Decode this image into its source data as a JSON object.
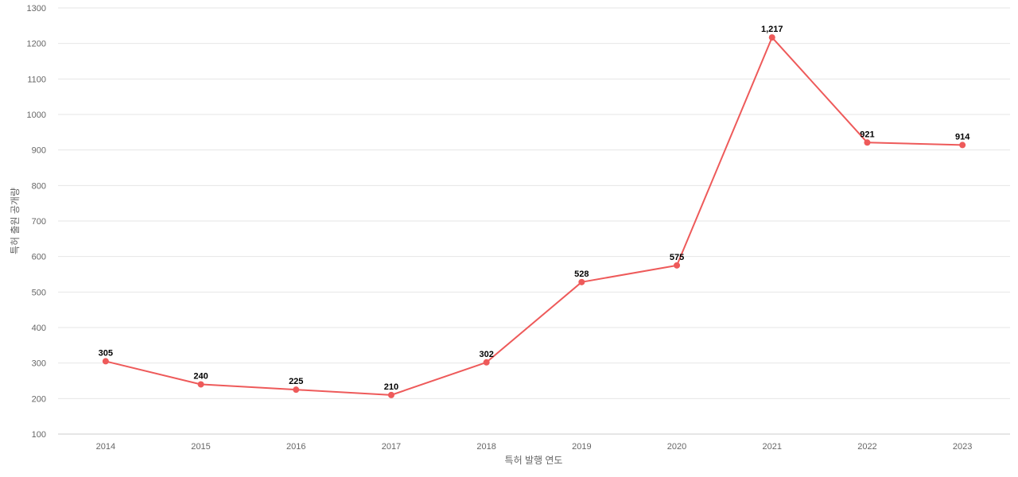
{
  "chart_data": {
    "type": "line",
    "title": "",
    "xlabel": "특허 발행 연도",
    "ylabel": "특허 출원 공개량",
    "categories": [
      "2014",
      "2015",
      "2016",
      "2017",
      "2018",
      "2019",
      "2020",
      "2021",
      "2022",
      "2023"
    ],
    "series": [
      {
        "values": [
          305,
          240,
          225,
          210,
          302,
          528,
          575,
          1217,
          921,
          914
        ],
        "data_labels": [
          "305",
          "240",
          "225",
          "210",
          "302",
          "528",
          "575",
          "1,217",
          "921",
          "914"
        ]
      }
    ],
    "ylim": [
      100,
      1300
    ],
    "yticks": [
      100,
      200,
      300,
      400,
      500,
      600,
      700,
      800,
      900,
      1000,
      1100,
      1200,
      1300
    ],
    "grid": true,
    "legend": "none",
    "color": "#ee5a5a"
  }
}
